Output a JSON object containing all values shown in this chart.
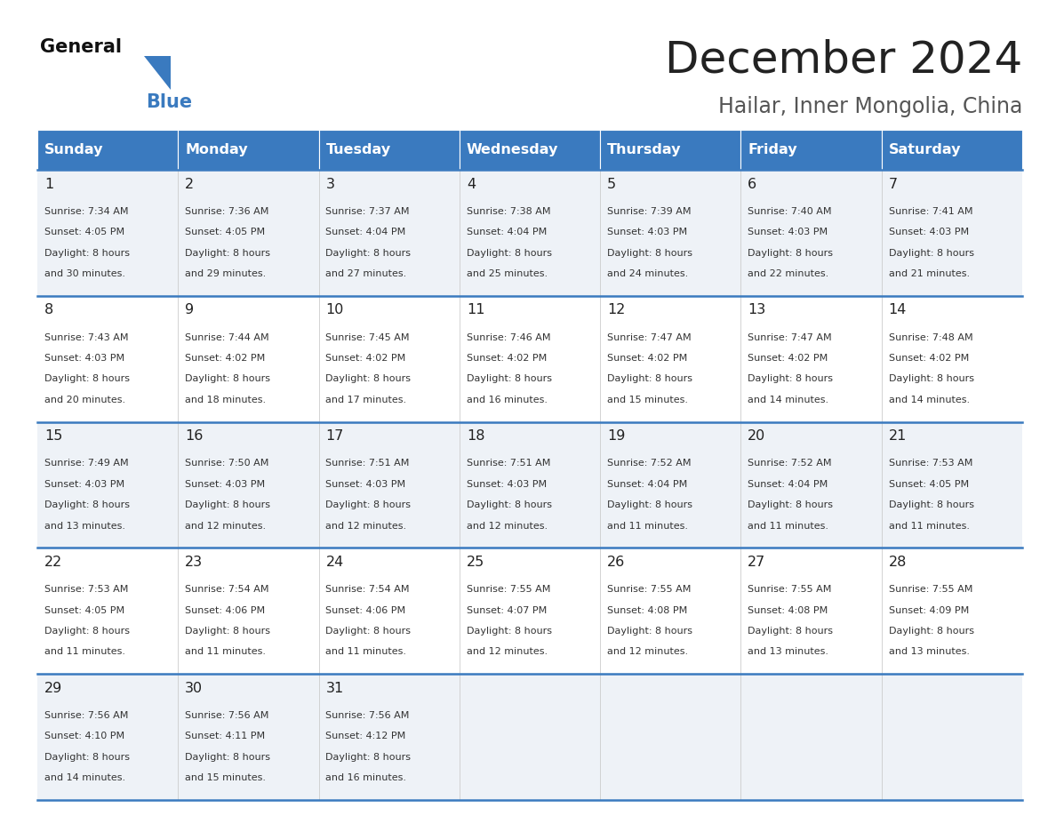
{
  "title": "December 2024",
  "subtitle": "Hailar, Inner Mongolia, China",
  "header_color": "#3a7abf",
  "header_text_color": "#ffffff",
  "days_of_week": [
    "Sunday",
    "Monday",
    "Tuesday",
    "Wednesday",
    "Thursday",
    "Friday",
    "Saturday"
  ],
  "bg_color": "#ffffff",
  "cell_bg_even": "#eef2f7",
  "cell_bg_odd": "#ffffff",
  "row_line_color": "#3a7abf",
  "grid_line_color": "#cccccc",
  "text_color": "#333333",
  "day_num_color": "#222222",
  "title_color": "#222222",
  "subtitle_color": "#555555",
  "logo_black": "#111111",
  "logo_blue": "#3a7abf",
  "calendar_data": [
    [
      {
        "day": 1,
        "sunrise": "7:34 AM",
        "sunset": "4:05 PM",
        "daylight": "8 hours and 30 minutes"
      },
      {
        "day": 2,
        "sunrise": "7:36 AM",
        "sunset": "4:05 PM",
        "daylight": "8 hours and 29 minutes"
      },
      {
        "day": 3,
        "sunrise": "7:37 AM",
        "sunset": "4:04 PM",
        "daylight": "8 hours and 27 minutes"
      },
      {
        "day": 4,
        "sunrise": "7:38 AM",
        "sunset": "4:04 PM",
        "daylight": "8 hours and 25 minutes"
      },
      {
        "day": 5,
        "sunrise": "7:39 AM",
        "sunset": "4:03 PM",
        "daylight": "8 hours and 24 minutes"
      },
      {
        "day": 6,
        "sunrise": "7:40 AM",
        "sunset": "4:03 PM",
        "daylight": "8 hours and 22 minutes"
      },
      {
        "day": 7,
        "sunrise": "7:41 AM",
        "sunset": "4:03 PM",
        "daylight": "8 hours and 21 minutes"
      }
    ],
    [
      {
        "day": 8,
        "sunrise": "7:43 AM",
        "sunset": "4:03 PM",
        "daylight": "8 hours and 20 minutes"
      },
      {
        "day": 9,
        "sunrise": "7:44 AM",
        "sunset": "4:02 PM",
        "daylight": "8 hours and 18 minutes"
      },
      {
        "day": 10,
        "sunrise": "7:45 AM",
        "sunset": "4:02 PM",
        "daylight": "8 hours and 17 minutes"
      },
      {
        "day": 11,
        "sunrise": "7:46 AM",
        "sunset": "4:02 PM",
        "daylight": "8 hours and 16 minutes"
      },
      {
        "day": 12,
        "sunrise": "7:47 AM",
        "sunset": "4:02 PM",
        "daylight": "8 hours and 15 minutes"
      },
      {
        "day": 13,
        "sunrise": "7:47 AM",
        "sunset": "4:02 PM",
        "daylight": "8 hours and 14 minutes"
      },
      {
        "day": 14,
        "sunrise": "7:48 AM",
        "sunset": "4:02 PM",
        "daylight": "8 hours and 14 minutes"
      }
    ],
    [
      {
        "day": 15,
        "sunrise": "7:49 AM",
        "sunset": "4:03 PM",
        "daylight": "8 hours and 13 minutes"
      },
      {
        "day": 16,
        "sunrise": "7:50 AM",
        "sunset": "4:03 PM",
        "daylight": "8 hours and 12 minutes"
      },
      {
        "day": 17,
        "sunrise": "7:51 AM",
        "sunset": "4:03 PM",
        "daylight": "8 hours and 12 minutes"
      },
      {
        "day": 18,
        "sunrise": "7:51 AM",
        "sunset": "4:03 PM",
        "daylight": "8 hours and 12 minutes"
      },
      {
        "day": 19,
        "sunrise": "7:52 AM",
        "sunset": "4:04 PM",
        "daylight": "8 hours and 11 minutes"
      },
      {
        "day": 20,
        "sunrise": "7:52 AM",
        "sunset": "4:04 PM",
        "daylight": "8 hours and 11 minutes"
      },
      {
        "day": 21,
        "sunrise": "7:53 AM",
        "sunset": "4:05 PM",
        "daylight": "8 hours and 11 minutes"
      }
    ],
    [
      {
        "day": 22,
        "sunrise": "7:53 AM",
        "sunset": "4:05 PM",
        "daylight": "8 hours and 11 minutes"
      },
      {
        "day": 23,
        "sunrise": "7:54 AM",
        "sunset": "4:06 PM",
        "daylight": "8 hours and 11 minutes"
      },
      {
        "day": 24,
        "sunrise": "7:54 AM",
        "sunset": "4:06 PM",
        "daylight": "8 hours and 11 minutes"
      },
      {
        "day": 25,
        "sunrise": "7:55 AM",
        "sunset": "4:07 PM",
        "daylight": "8 hours and 12 minutes"
      },
      {
        "day": 26,
        "sunrise": "7:55 AM",
        "sunset": "4:08 PM",
        "daylight": "8 hours and 12 minutes"
      },
      {
        "day": 27,
        "sunrise": "7:55 AM",
        "sunset": "4:08 PM",
        "daylight": "8 hours and 13 minutes"
      },
      {
        "day": 28,
        "sunrise": "7:55 AM",
        "sunset": "4:09 PM",
        "daylight": "8 hours and 13 minutes"
      }
    ],
    [
      {
        "day": 29,
        "sunrise": "7:56 AM",
        "sunset": "4:10 PM",
        "daylight": "8 hours and 14 minutes"
      },
      {
        "day": 30,
        "sunrise": "7:56 AM",
        "sunset": "4:11 PM",
        "daylight": "8 hours and 15 minutes"
      },
      {
        "day": 31,
        "sunrise": "7:56 AM",
        "sunset": "4:12 PM",
        "daylight": "8 hours and 16 minutes"
      },
      null,
      null,
      null,
      null
    ]
  ]
}
